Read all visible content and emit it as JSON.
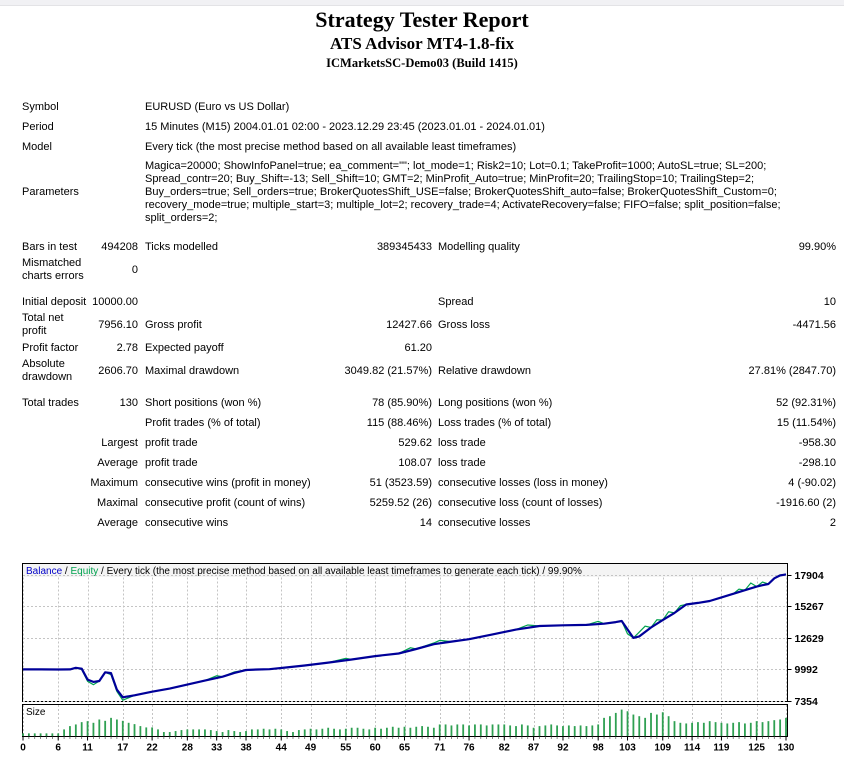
{
  "header": {
    "title": "Strategy Tester Report",
    "ea_name": "ATS Advisor MT4-1.8-fix",
    "server": "ICMarketsSC-Demo03 (Build 1415)"
  },
  "table": {
    "rows": [
      {
        "c": [
          "Symbol",
          "",
          "EURUSD (Euro vs US Dollar)",
          "",
          "",
          ""
        ],
        "wide": true
      },
      {
        "c": [
          "Period",
          "",
          "15 Minutes (M15) 2004.01.01 02:00 - 2023.12.29 23:45 (2023.01.01 - 2024.01.01)",
          "",
          "",
          ""
        ],
        "wide": true
      },
      {
        "c": [
          "Model",
          "",
          "Every tick (the most precise method based on all available least timeframes)",
          "",
          "",
          ""
        ],
        "wide": true
      },
      {
        "c": [
          "Parameters",
          "",
          "Magica=20000; ShowInfoPanel=true; ea_comment=\"\"; lot_mode=1; Risk2=10; Lot=0.1; TakeProfit=1000; AutoSL=true; SL=200;\nSpread_contr=20; Buy_Shift=-13; Sell_Shift=10; GMT=2; MinProfit_Auto=true; MinProfit=20; TrailingStop=10; TrailingStep=2;\nBuy_orders=true; Sell_orders=true; BrokerQuotesShift_USE=false; BrokerQuotesShift_auto=false; BrokerQuotesShift_Custom=0;\nrecovery_mode=true; multiple_start=3; multiple_lot=2; recovery_trade=4; ActivateRecovery=false; FIFO=false; split_position=false;\nsplit_orders=2;",
          "",
          "",
          ""
        ],
        "wide": true,
        "cls": "params"
      },
      {
        "c": [
          "Bars in test",
          "494208",
          "Ticks modelled",
          "389345433",
          "Modelling quality",
          "99.90%"
        ],
        "gap": true
      },
      {
        "c": [
          "Mismatched charts errors",
          "0",
          "",
          "",
          "",
          ""
        ]
      },
      {
        "c": [
          "Initial deposit",
          "10000.00",
          "",
          "",
          "Spread",
          "10"
        ],
        "gap": true
      },
      {
        "c": [
          "Total net profit",
          "7956.10",
          "Gross profit",
          "12427.66",
          "Gross loss",
          "-4471.56"
        ]
      },
      {
        "c": [
          "Profit factor",
          "2.78",
          "Expected payoff",
          "61.20",
          "",
          ""
        ]
      },
      {
        "c": [
          "Absolute drawdown",
          "2606.70",
          "Maximal drawdown",
          "3049.82 (21.57%)",
          "Relative drawdown",
          "27.81% (2847.70)"
        ]
      },
      {
        "c": [
          "Total trades",
          "130",
          "Short positions (won %)",
          "78 (85.90%)",
          "Long positions (won %)",
          "52 (92.31%)"
        ],
        "gap": true
      },
      {
        "c": [
          "",
          "",
          "Profit trades (% of total)",
          "115 (88.46%)",
          "Loss trades (% of total)",
          "15 (11.54%)"
        ]
      },
      {
        "c": [
          "",
          "Largest",
          "profit trade",
          "529.62",
          "loss trade",
          "-958.30"
        ]
      },
      {
        "c": [
          "",
          "Average",
          "profit trade",
          "108.07",
          "loss trade",
          "-298.10"
        ]
      },
      {
        "c": [
          "",
          "Maximum",
          "consecutive wins (profit in money)",
          "51 (3523.59)",
          "consecutive losses (loss in money)",
          "4 (-90.02)"
        ]
      },
      {
        "c": [
          "",
          "Maximal",
          "consecutive profit (count of wins)",
          "5259.52 (26)",
          "consecutive loss (count of losses)",
          "-1916.60 (2)"
        ]
      },
      {
        "c": [
          "",
          "Average",
          "consecutive wins",
          "14",
          "consecutive losses",
          "2"
        ]
      }
    ]
  },
  "chart_data": {
    "type": "line",
    "legend": {
      "balance_label": "Balance",
      "sep1": " / ",
      "equity_label": "Equity",
      "rest": " / Every tick (the most precise method based on all available least timeframes to generate each tick) / 99.90%"
    },
    "size_label": "Size",
    "y_ticks": [
      17904,
      15267,
      12629,
      9992,
      7354
    ],
    "x_ticks": [
      0,
      6,
      11,
      17,
      22,
      28,
      33,
      38,
      44,
      49,
      55,
      60,
      65,
      71,
      76,
      82,
      87,
      92,
      98,
      103,
      109,
      114,
      119,
      125,
      130
    ],
    "x_range": [
      0,
      130
    ],
    "y_axis_top_value": 17904,
    "y_axis_bottom_value": 7354,
    "series": [
      {
        "name": "Balance",
        "points": [
          [
            0,
            10000
          ],
          [
            3,
            10000
          ],
          [
            6,
            9990
          ],
          [
            8,
            10000
          ],
          [
            9,
            10130
          ],
          [
            10,
            10060
          ],
          [
            11,
            9150
          ],
          [
            12,
            8950
          ],
          [
            13,
            9030
          ],
          [
            14,
            9760
          ],
          [
            15,
            9690
          ],
          [
            16,
            8300
          ],
          [
            17,
            7660
          ],
          [
            19,
            7830
          ],
          [
            22,
            8130
          ],
          [
            25,
            8390
          ],
          [
            28,
            8730
          ],
          [
            31,
            9060
          ],
          [
            34,
            9390
          ],
          [
            36,
            9710
          ],
          [
            38,
            9950
          ],
          [
            40,
            9990
          ],
          [
            42,
            10020
          ],
          [
            45,
            10170
          ],
          [
            48,
            10330
          ],
          [
            52,
            10570
          ],
          [
            56,
            10830
          ],
          [
            60,
            11110
          ],
          [
            64,
            11330
          ],
          [
            67,
            11710
          ],
          [
            70,
            12110
          ],
          [
            73,
            12330
          ],
          [
            76,
            12530
          ],
          [
            80,
            12930
          ],
          [
            84,
            13330
          ],
          [
            88,
            13630
          ],
          [
            92,
            13690
          ],
          [
            96,
            13730
          ],
          [
            99,
            13830
          ],
          [
            101,
            13960
          ],
          [
            102,
            14050
          ],
          [
            104,
            12640
          ],
          [
            105,
            12760
          ],
          [
            107,
            13510
          ],
          [
            109,
            14130
          ],
          [
            111,
            14730
          ],
          [
            113,
            15430
          ],
          [
            115,
            15570
          ],
          [
            117,
            15730
          ],
          [
            119,
            16030
          ],
          [
            121,
            16330
          ],
          [
            123,
            16630
          ],
          [
            125,
            16930
          ],
          [
            126,
            17050
          ],
          [
            127,
            17150
          ],
          [
            128,
            17630
          ],
          [
            129,
            17870
          ],
          [
            130,
            17956
          ]
        ]
      },
      {
        "name": "Equity",
        "points": [
          [
            0,
            10000
          ],
          [
            3,
            10000
          ],
          [
            6,
            9990
          ],
          [
            8,
            10000
          ],
          [
            9,
            10130
          ],
          [
            10,
            9980
          ],
          [
            11,
            9000
          ],
          [
            12,
            8720
          ],
          [
            13,
            9030
          ],
          [
            14,
            9760
          ],
          [
            15,
            9560
          ],
          [
            16,
            8150
          ],
          [
            17,
            7420
          ],
          [
            19,
            7830
          ],
          [
            22,
            8130
          ],
          [
            25,
            8390
          ],
          [
            28,
            8730
          ],
          [
            31,
            9060
          ],
          [
            33,
            9460
          ],
          [
            34,
            9390
          ],
          [
            36,
            9790
          ],
          [
            38,
            9950
          ],
          [
            40,
            9990
          ],
          [
            42,
            10020
          ],
          [
            45,
            10170
          ],
          [
            48,
            10330
          ],
          [
            52,
            10570
          ],
          [
            55,
            10920
          ],
          [
            56,
            10830
          ],
          [
            60,
            11110
          ],
          [
            64,
            11330
          ],
          [
            66,
            11810
          ],
          [
            67,
            11710
          ],
          [
            70,
            12210
          ],
          [
            71,
            12430
          ],
          [
            73,
            12330
          ],
          [
            76,
            12530
          ],
          [
            80,
            12930
          ],
          [
            84,
            13330
          ],
          [
            86,
            13720
          ],
          [
            88,
            13630
          ],
          [
            92,
            13690
          ],
          [
            96,
            13730
          ],
          [
            98,
            14020
          ],
          [
            99,
            13830
          ],
          [
            101,
            13960
          ],
          [
            102,
            14050
          ],
          [
            103,
            12980
          ],
          [
            104,
            12640
          ],
          [
            105,
            13120
          ],
          [
            106,
            13620
          ],
          [
            107,
            13510
          ],
          [
            108,
            14150
          ],
          [
            109,
            14130
          ],
          [
            110,
            14820
          ],
          [
            111,
            14730
          ],
          [
            112,
            15330
          ],
          [
            113,
            15430
          ],
          [
            115,
            15570
          ],
          [
            117,
            15730
          ],
          [
            119,
            16030
          ],
          [
            121,
            16330
          ],
          [
            122,
            16720
          ],
          [
            123,
            16630
          ],
          [
            124,
            17230
          ],
          [
            125,
            16930
          ],
          [
            126,
            17320
          ],
          [
            127,
            17150
          ],
          [
            128,
            17630
          ],
          [
            129,
            17910
          ],
          [
            130,
            17956
          ]
        ]
      }
    ],
    "size_bars": [
      0.08,
      0.08,
      0.08,
      0.08,
      0.08,
      0.08,
      0.08,
      0.2,
      0.3,
      0.35,
      0.42,
      0.45,
      0.4,
      0.5,
      0.46,
      0.55,
      0.5,
      0.46,
      0.4,
      0.36,
      0.3,
      0.26,
      0.26,
      0.2,
      0.12,
      0.12,
      0.15,
      0.18,
      0.2,
      0.2,
      0.2,
      0.2,
      0.18,
      0.15,
      0.12,
      0.18,
      0.15,
      0.12,
      0.15,
      0.2,
      0.2,
      0.22,
      0.2,
      0.22,
      0.2,
      0.15,
      0.12,
      0.18,
      0.2,
      0.22,
      0.2,
      0.22,
      0.25,
      0.22,
      0.2,
      0.22,
      0.25,
      0.25,
      0.22,
      0.2,
      0.25,
      0.22,
      0.25,
      0.28,
      0.25,
      0.28,
      0.25,
      0.28,
      0.3,
      0.28,
      0.25,
      0.35,
      0.35,
      0.32,
      0.35,
      0.35,
      0.32,
      0.35,
      0.35,
      0.32,
      0.35,
      0.35,
      0.35,
      0.32,
      0.3,
      0.35,
      0.32,
      0.25,
      0.3,
      0.32,
      0.35,
      0.32,
      0.3,
      0.32,
      0.3,
      0.32,
      0.3,
      0.32,
      0.35,
      0.55,
      0.6,
      0.7,
      0.8,
      0.75,
      0.65,
      0.6,
      0.55,
      0.7,
      0.65,
      0.72,
      0.6,
      0.45,
      0.4,
      0.38,
      0.4,
      0.42,
      0.4,
      0.45,
      0.42,
      0.4,
      0.38,
      0.4,
      0.42,
      0.38,
      0.4,
      0.45,
      0.42,
      0.45,
      0.48,
      0.5,
      0.55
    ],
    "colors": {
      "balance": "#000099",
      "equity": "#00A24E",
      "bars": "#2FA052",
      "grid": "#c4c4c4",
      "border": "#000000",
      "header_bg": "#f4f4f4",
      "legend_balance": "#0000C8",
      "legend_equity": "#00A24E"
    }
  }
}
